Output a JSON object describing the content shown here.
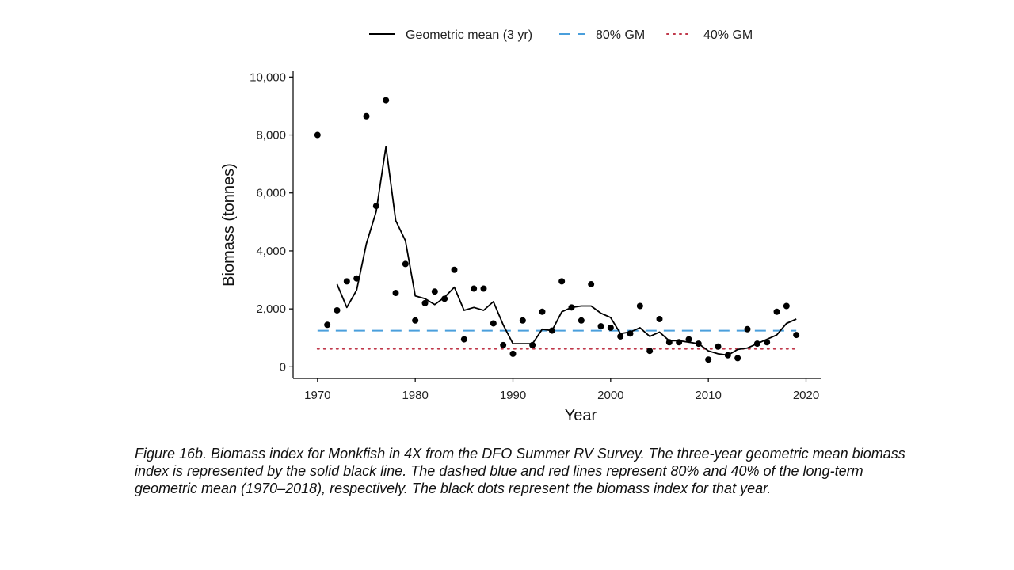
{
  "chart_data": {
    "type": "scatter",
    "xlabel": "Year",
    "ylabel": "Biomass (tonnes)",
    "xlim": [
      1967.5,
      2021.5
    ],
    "ylim": [
      -400,
      10200
    ],
    "x_ticks": [
      1970,
      1980,
      1990,
      2000,
      2010,
      2020
    ],
    "y_ticks": [
      0,
      2000,
      4000,
      6000,
      8000,
      10000
    ],
    "y_tick_labels": [
      "0",
      "2,000",
      "4,000",
      "6,000",
      "8,000",
      "10,000"
    ],
    "legend_position": "top",
    "legend": [
      {
        "label": "Geometric mean (3 yr)",
        "style": "solid",
        "color": "#000000"
      },
      {
        "label": "80% GM",
        "style": "dashed",
        "color": "#4a9fdc"
      },
      {
        "label": "40% GM",
        "style": "dotted",
        "color": "#c0394b"
      }
    ],
    "points": {
      "name": "Biomass index",
      "x": [
        1970,
        1971,
        1972,
        1973,
        1974,
        1975,
        1976,
        1977,
        1978,
        1979,
        1980,
        1981,
        1982,
        1983,
        1984,
        1985,
        1986,
        1987,
        1988,
        1989,
        1990,
        1991,
        1992,
        1993,
        1994,
        1995,
        1996,
        1997,
        1998,
        1999,
        2000,
        2001,
        2002,
        2003,
        2004,
        2005,
        2006,
        2007,
        2008,
        2009,
        2010,
        2011,
        2012,
        2013,
        2014,
        2015,
        2016,
        2017,
        2018,
        2019
      ],
      "y": [
        8000,
        1450,
        1950,
        2950,
        3050,
        8650,
        5550,
        9200,
        2550,
        3550,
        1600,
        2200,
        2600,
        2350,
        3350,
        950,
        2700,
        2700,
        1500,
        750,
        450,
        1600,
        750,
        1900,
        1250,
        2950,
        2050,
        1600,
        2850,
        1400,
        1350,
        1050,
        1150,
        2100,
        550,
        1650,
        850,
        850,
        950,
        800,
        250,
        700,
        400,
        300,
        1300,
        800,
        850,
        1900,
        2100,
        1100
      ]
    },
    "geometric_mean": {
      "name": "Geometric mean (3 yr)",
      "x": [
        1972,
        1973,
        1974,
        1975,
        1976,
        1977,
        1978,
        1979,
        1980,
        1981,
        1982,
        1983,
        1984,
        1985,
        1986,
        1987,
        1988,
        1989,
        1990,
        1991,
        1992,
        1993,
        1994,
        1995,
        1996,
        1997,
        1998,
        1999,
        2000,
        2001,
        2002,
        2003,
        2004,
        2005,
        2006,
        2007,
        2008,
        2009,
        2010,
        2011,
        2012,
        2013,
        2014,
        2015,
        2016,
        2017,
        2018,
        2019
      ],
      "y": [
        2850,
        2050,
        2650,
        4250,
        5350,
        7600,
        5050,
        4350,
        2450,
        2350,
        2150,
        2400,
        2750,
        1950,
        2050,
        1950,
        2250,
        1450,
        800,
        800,
        800,
        1300,
        1250,
        1900,
        2050,
        2100,
        2100,
        1850,
        1700,
        1150,
        1200,
        1350,
        1050,
        1200,
        900,
        900,
        850,
        800,
        550,
        450,
        400,
        600,
        650,
        800,
        950,
        1100,
        1500,
        1650
      ]
    },
    "reference_lines": [
      {
        "name": "80% GM",
        "value": 1250,
        "x_range": [
          1970,
          2019
        ],
        "style": "dashed",
        "color": "#4a9fdc"
      },
      {
        "name": "40% GM",
        "value": 620,
        "x_range": [
          1970,
          2019
        ],
        "style": "dotted",
        "color": "#c0394b"
      }
    ]
  },
  "caption": "Figure 16b. Biomass index for Monkfish in 4X from the DFO Summer RV Survey. The three-year geometric mean biomass index is represented by the solid black line. The dashed blue and red lines represent 80% and 40% of the long-term geometric mean (1970–2018), respectively. The black dots represent the biomass index for that year."
}
